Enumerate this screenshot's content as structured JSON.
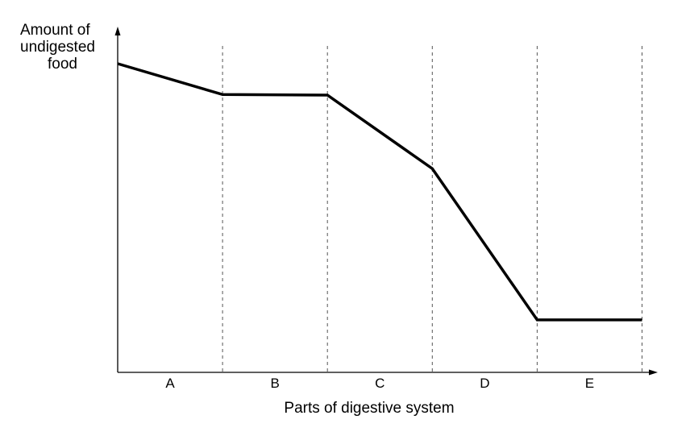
{
  "chart_data": {
    "type": "line",
    "title": "",
    "ylabel_lines": [
      "Amount of",
      "undigested",
      "food"
    ],
    "xlabel": "Parts of digestive system",
    "regions": [
      "A",
      "B",
      "C",
      "D",
      "E"
    ],
    "x": [
      0,
      1,
      2,
      3,
      4,
      5
    ],
    "y": [
      100,
      90,
      89.8,
      66,
      17,
      17
    ],
    "xlim": [
      0,
      5.15
    ],
    "ylim": [
      0,
      112
    ],
    "grid": "dashed vertical region dividers",
    "legend": "none",
    "line_color": "#000000"
  }
}
